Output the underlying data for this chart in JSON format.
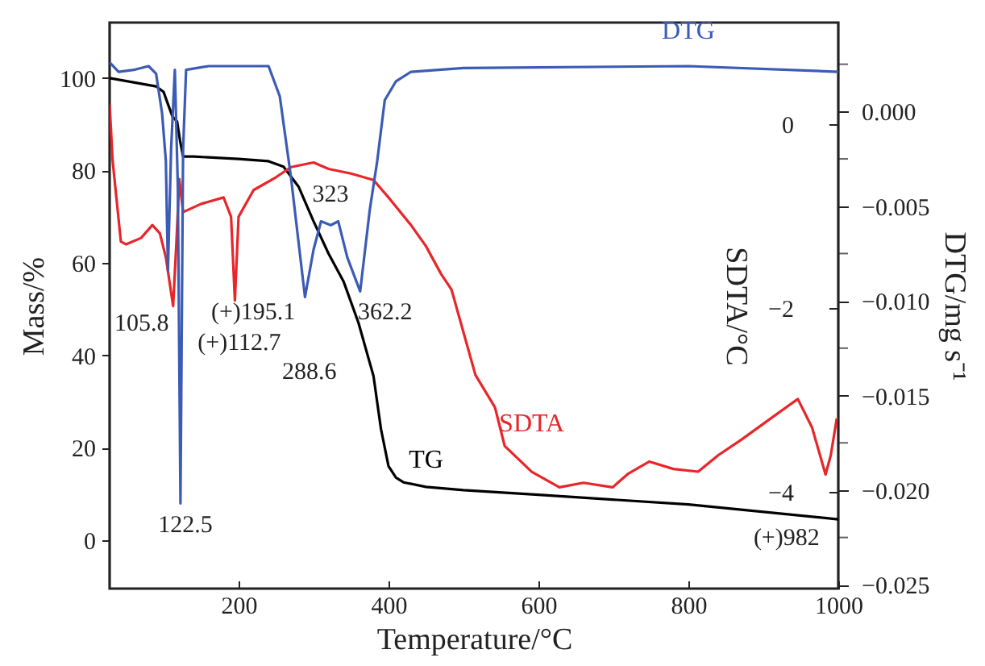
{
  "chart_data": {
    "type": "line",
    "xlabel": "Temperature/°C",
    "ylabel": "Mass/%",
    "y2label": "SDTA/°C",
    "y3label": "DTG/mg s⁻¹",
    "xlim": [
      28,
      1000
    ],
    "xticks": [
      200,
      400,
      600,
      800,
      1000
    ],
    "ylim": [
      -10.5,
      112
    ],
    "yticks": [
      0,
      20,
      40,
      60,
      80,
      100
    ],
    "y2lim": [
      -5.05,
      1.1
    ],
    "y2ticks": [
      0,
      {
        "value": -2,
        "label": "−2"
      },
      {
        "value": -4,
        "label": "−4"
      }
    ],
    "y3lim": [
      -0.0252,
      0.0047
    ],
    "y3ticks": [
      {
        "value": 0.0025,
        "label": null
      },
      {
        "value": 0,
        "label": "0.000"
      },
      {
        "value": -0.0025,
        "label": null
      },
      {
        "value": -0.005,
        "label": "−0.005"
      },
      {
        "value": -0.0075,
        "label": null
      },
      {
        "value": -0.01,
        "label": "−0.010"
      },
      {
        "value": -0.0125,
        "label": null
      },
      {
        "value": -0.015,
        "label": "−0.015"
      },
      {
        "value": -0.0175,
        "label": null
      },
      {
        "value": -0.02,
        "label": "−0.020"
      },
      {
        "value": -0.0225,
        "label": null
      },
      {
        "value": -0.025,
        "label": "−0.025"
      }
    ],
    "grid": false,
    "marker": "none",
    "line_style": "solid",
    "series": [
      {
        "name": "TG",
        "color": "#000000",
        "axis": "y",
        "x": [
          28,
          90,
          100,
          105,
          112,
          118,
          122,
          126,
          140,
          200,
          240,
          260,
          280,
          300,
          320,
          340,
          360,
          380,
          390,
          400,
          410,
          420,
          450,
          500,
          600,
          800,
          1000
        ],
        "values": [
          100,
          98.2,
          97,
          94.7,
          91.6,
          90.6,
          86.4,
          83,
          83,
          82.5,
          82,
          80.8,
          76.5,
          69,
          62,
          56,
          47,
          35.5,
          24,
          16,
          13.5,
          12.5,
          11.5,
          10.8,
          9.8,
          7.7,
          4.5
        ]
      },
      {
        "name": "SDTA",
        "color": "#e8262a",
        "axis": "y2",
        "x": [
          28,
          32,
          43,
          50,
          70,
          85,
          95,
          103,
          112.7,
          117,
          121,
          126,
          150,
          180,
          190,
          195.1,
          200,
          220,
          250,
          270,
          300,
          320,
          350,
          380,
          400,
          430,
          450,
          470,
          484,
          516,
          542,
          555,
          591,
          628,
          660,
          699,
          720,
          748,
          780,
          813,
          840,
          871,
          910,
          946,
          965,
          983,
          990,
          998
        ],
        "values": [
          0.21,
          -0.4,
          -1.28,
          -1.31,
          -1.24,
          -1.1,
          -1.19,
          -1.45,
          -1.98,
          -1.3,
          -0.6,
          -0.96,
          -0.87,
          -0.8,
          -1.01,
          -1.92,
          -1.01,
          -0.72,
          -0.58,
          -0.47,
          -0.42,
          -0.49,
          -0.54,
          -0.61,
          -0.8,
          -1.1,
          -1.33,
          -1.63,
          -1.8,
          -2.73,
          -3.08,
          -3.5,
          -3.78,
          -3.95,
          -3.9,
          -3.95,
          -3.8,
          -3.67,
          -3.75,
          -3.78,
          -3.6,
          -3.43,
          -3.2,
          -2.99,
          -3.3,
          -3.81,
          -3.6,
          -3.2
        ]
      },
      {
        "name": "DTG",
        "color": "#3b5bb5",
        "axis": "y3",
        "x": [
          28,
          40,
          60,
          80,
          90,
          98,
          103,
          105.8,
          110,
          115,
          119,
          122.5,
          126,
          130,
          160,
          240,
          255,
          270,
          280,
          288.6,
          300,
          310,
          323,
          333,
          345,
          362.2,
          375,
          385,
          395,
          410,
          430,
          500,
          800,
          1000
        ],
        "values": [
          0.0026,
          0.0021,
          0.0022,
          0.0024,
          0.002,
          -0.0001,
          -0.0026,
          -0.0084,
          -0.002,
          0.0022,
          -0.004,
          -0.0207,
          -0.002,
          0.0022,
          0.0024,
          0.0024,
          0.0008,
          -0.0035,
          -0.0069,
          -0.0098,
          -0.0073,
          -0.0058,
          -0.006,
          -0.0058,
          -0.0077,
          -0.0095,
          -0.0052,
          -0.0026,
          0.0006,
          0.0016,
          0.0021,
          0.0023,
          0.0024,
          0.0021
        ]
      }
    ],
    "annotations": [
      "105.8",
      "(+)112.7",
      "122.5",
      "(+)195.1",
      "288.6",
      "323",
      "362.2",
      "(+)982"
    ]
  }
}
